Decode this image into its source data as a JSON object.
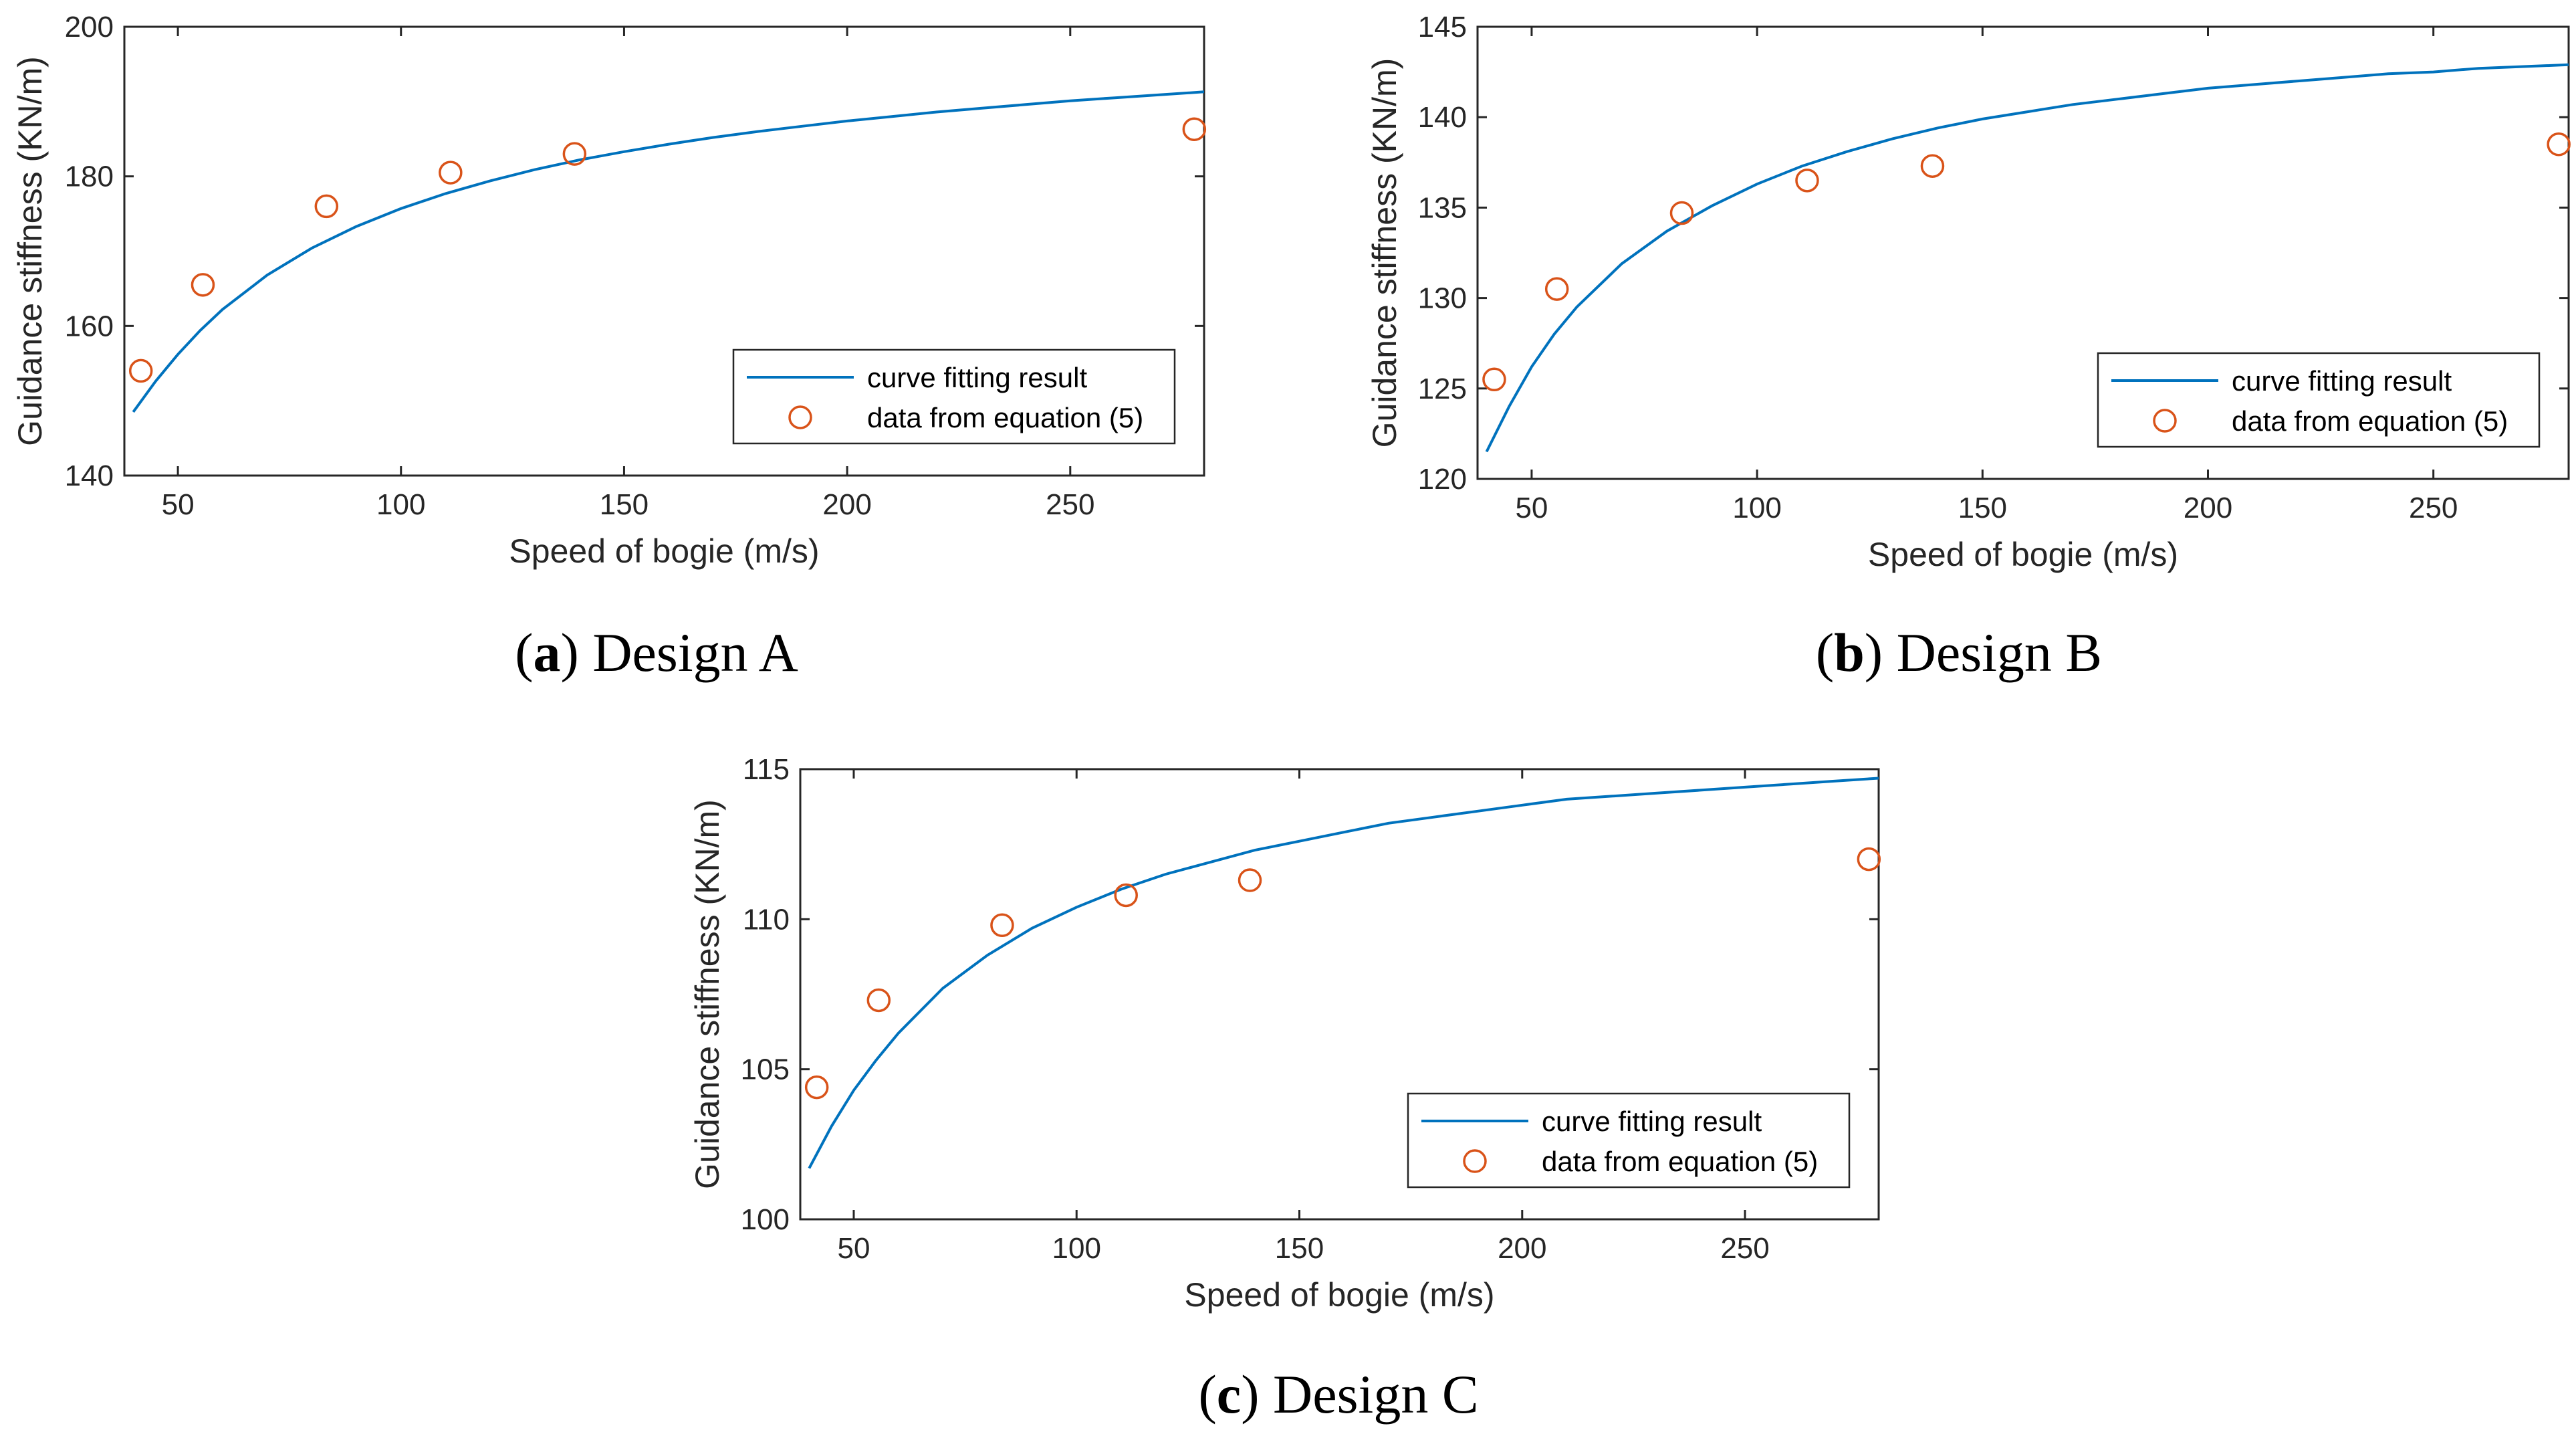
{
  "chart_data": [
    {
      "type": "line+scatter",
      "panel": "a",
      "caption_letter": "a",
      "caption_text": "Design A",
      "xlabel": "Speed of bogie (m/s)",
      "ylabel": "Guidance stiffness (KN/m)",
      "xlim": [
        38,
        280
      ],
      "ylim": [
        140,
        200
      ],
      "xticks": [
        50,
        100,
        150,
        200,
        250
      ],
      "yticks": [
        140,
        160,
        180,
        200
      ],
      "fit": {
        "name": "curve fitting result",
        "x": [
          40,
          45,
          50,
          55,
          60,
          70,
          80,
          90,
          100,
          110,
          120,
          130,
          140,
          150,
          160,
          170,
          180,
          190,
          200,
          210,
          220,
          230,
          240,
          250,
          260,
          270,
          280
        ],
        "values": [
          148.5,
          152.6,
          156.2,
          159.4,
          162.2,
          166.8,
          170.4,
          173.3,
          175.7,
          177.7,
          179.4,
          180.9,
          182.2,
          183.3,
          184.3,
          185.2,
          186.0,
          186.7,
          187.4,
          188.0,
          188.6,
          189.1,
          189.6,
          190.1,
          190.5,
          190.9,
          191.3
        ],
        "color": "#0072BD"
      },
      "points": {
        "name": "data from equation (5)",
        "x": [
          41.7,
          55.6,
          83.3,
          111.1,
          138.9,
          277.8
        ],
        "values": [
          154.0,
          165.5,
          176.0,
          180.5,
          183.0,
          186.3
        ],
        "color": "#D95319"
      },
      "legend_position": "lower-right"
    },
    {
      "type": "line+scatter",
      "panel": "b",
      "caption_letter": "b",
      "caption_text": "Design B",
      "xlabel": "Speed of bogie (m/s)",
      "ylabel": "Guidance stiffness (KN/m)",
      "xlim": [
        38,
        280
      ],
      "ylim": [
        120,
        145
      ],
      "xticks": [
        50,
        100,
        150,
        200,
        250
      ],
      "yticks": [
        120,
        125,
        130,
        135,
        140,
        145
      ],
      "fit": {
        "name": "curve fitting result",
        "x": [
          40,
          45,
          50,
          55,
          60,
          70,
          80,
          90,
          100,
          110,
          120,
          130,
          140,
          150,
          160,
          170,
          180,
          190,
          200,
          210,
          220,
          230,
          240,
          250,
          260,
          270,
          280
        ],
        "values": [
          121.5,
          124.0,
          126.2,
          128.0,
          129.5,
          131.9,
          133.7,
          135.1,
          136.3,
          137.3,
          138.1,
          138.8,
          139.4,
          139.9,
          140.3,
          140.7,
          141.0,
          141.3,
          141.6,
          141.8,
          142.0,
          142.2,
          142.4,
          142.5,
          142.7,
          142.8,
          142.9
        ],
        "color": "#0072BD"
      },
      "points": {
        "name": "data from equation (5)",
        "x": [
          41.7,
          55.6,
          83.3,
          111.1,
          138.9,
          277.8
        ],
        "values": [
          125.5,
          130.5,
          134.7,
          136.5,
          137.3,
          138.5
        ],
        "color": "#D95319"
      },
      "legend_position": "lower-right"
    },
    {
      "type": "line+scatter",
      "panel": "c",
      "caption_letter": "c",
      "caption_text": "Design C",
      "xlabel": "Speed of bogie (m/s)",
      "ylabel": "Guidance stiffness (KN/m)",
      "xlim": [
        38,
        280
      ],
      "ylim": [
        100,
        115
      ],
      "xticks": [
        50,
        100,
        150,
        200,
        250
      ],
      "yticks": [
        100,
        105,
        110,
        115
      ],
      "fit": {
        "name": "curve fitting result",
        "x": [
          40,
          45,
          50,
          55,
          60,
          70,
          80,
          90,
          100,
          110,
          120,
          130,
          140,
          150,
          160,
          170,
          180,
          190,
          200,
          210,
          220,
          230,
          240,
          250,
          260,
          270,
          280
        ],
        "values": [
          101.7,
          103.1,
          104.3,
          105.3,
          106.2,
          107.7,
          108.8,
          109.7,
          110.4,
          111.0,
          111.5,
          111.9,
          112.3,
          112.6,
          112.9,
          113.2,
          113.4,
          113.6,
          113.8,
          114.0,
          114.1,
          114.2,
          114.3,
          114.4,
          114.5,
          114.6,
          114.7
        ],
        "color": "#0072BD"
      },
      "points": {
        "name": "data from equation (5)",
        "x": [
          41.7,
          55.6,
          83.3,
          111.1,
          138.9,
          277.8
        ],
        "values": [
          104.4,
          107.3,
          109.8,
          110.8,
          111.3,
          112.0
        ],
        "color": "#D95319"
      },
      "legend_position": "lower-right"
    }
  ]
}
